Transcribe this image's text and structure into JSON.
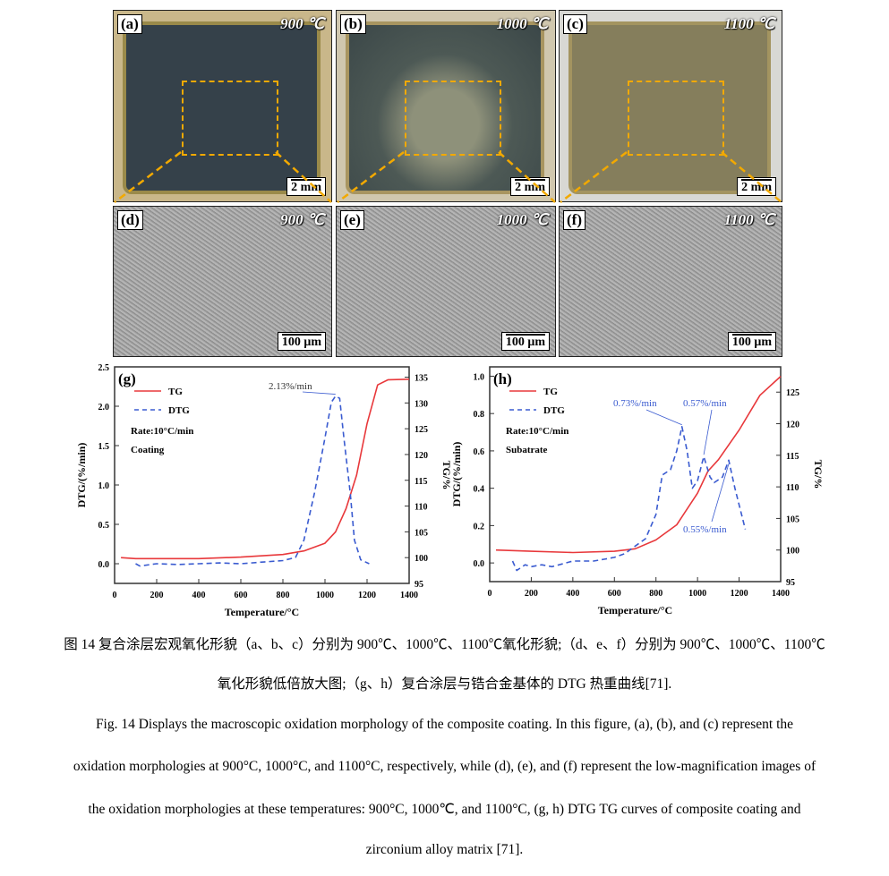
{
  "panels": {
    "macro": [
      {
        "label": "(a)",
        "temp": "900 ℃",
        "scale": "2 mm"
      },
      {
        "label": "(b)",
        "temp": "1000 ℃",
        "scale": "2 mm"
      },
      {
        "label": "(c)",
        "temp": "1100 ℃",
        "scale": "2 mm"
      }
    ],
    "sem": [
      {
        "label": "(d)",
        "temp": "900 ℃",
        "scale": "100 μm"
      },
      {
        "label": "(e)",
        "temp": "1000 ℃",
        "scale": "100 μm"
      },
      {
        "label": "(f)",
        "temp": "1100 ℃",
        "scale": "100 μm"
      }
    ]
  },
  "chart_data": [
    {
      "type": "line",
      "panel": "(g)",
      "xlabel": "Temperature/°C",
      "ylabel": "DTG/(%/min)",
      "y2label": "TG/%",
      "xlim": [
        0,
        1400
      ],
      "xticks": [
        0,
        200,
        400,
        600,
        800,
        1000,
        1200,
        1400
      ],
      "ylim": [
        -0.25,
        2.5
      ],
      "yticks": [
        0.0,
        0.5,
        1.0,
        1.5,
        2.0,
        2.5
      ],
      "y2lim": [
        95,
        137
      ],
      "y2ticks": [
        95,
        100,
        105,
        110,
        115,
        120,
        125,
        130,
        135
      ],
      "legend": [
        "TG",
        "DTG"
      ],
      "notes": [
        "Rate:10°C/min",
        "Coating"
      ],
      "annotations": [
        {
          "text": "2.13%/min",
          "x": 1050,
          "y": 2.13
        }
      ],
      "colors": {
        "TG": "#e8383b",
        "DTG": "#3a5bd0"
      },
      "series": [
        {
          "name": "TG",
          "axis": "right",
          "points": [
            [
              30,
              100
            ],
            [
              100,
              99.8
            ],
            [
              400,
              99.8
            ],
            [
              600,
              100.1
            ],
            [
              800,
              100.6
            ],
            [
              900,
              101.3
            ],
            [
              1000,
              102.8
            ],
            [
              1050,
              105
            ],
            [
              1100,
              109.5
            ],
            [
              1150,
              116
            ],
            [
              1200,
              126
            ],
            [
              1250,
              133.5
            ],
            [
              1300,
              134.5
            ],
            [
              1400,
              134.6
            ]
          ]
        },
        {
          "name": "DTG",
          "axis": "left",
          "points": [
            [
              100,
              0
            ],
            [
              120,
              -0.03
            ],
            [
              200,
              0
            ],
            [
              300,
              -0.01
            ],
            [
              400,
              0
            ],
            [
              500,
              0.01
            ],
            [
              600,
              0
            ],
            [
              700,
              0.02
            ],
            [
              800,
              0.04
            ],
            [
              860,
              0.08
            ],
            [
              900,
              0.3
            ],
            [
              950,
              0.9
            ],
            [
              1000,
              1.6
            ],
            [
              1030,
              2.05
            ],
            [
              1050,
              2.13
            ],
            [
              1070,
              2.1
            ],
            [
              1090,
              1.6
            ],
            [
              1120,
              0.9
            ],
            [
              1140,
              0.3
            ],
            [
              1170,
              0.05
            ],
            [
              1210,
              0.0
            ]
          ]
        }
      ]
    },
    {
      "type": "line",
      "panel": "(h)",
      "xlabel": "Temperature/°C",
      "ylabel": "DTG/(%/min)",
      "y2label": "TG/%",
      "xlim": [
        0,
        1400
      ],
      "xticks": [
        0,
        200,
        400,
        600,
        800,
        1000,
        1200,
        1400
      ],
      "ylim": [
        -0.1,
        1.05
      ],
      "yticks": [
        0.0,
        0.2,
        0.4,
        0.6,
        0.8,
        1.0
      ],
      "y2lim": [
        95,
        129
      ],
      "y2ticks": [
        95,
        100,
        105,
        110,
        115,
        120,
        125
      ],
      "legend": [
        "TG",
        "DTG"
      ],
      "notes": [
        "Rate:10°C/min",
        "Subatrate"
      ],
      "annotations": [
        {
          "text": "0.73%/min",
          "x": 925,
          "y": 0.73
        },
        {
          "text": "0.57%/min",
          "x": 1030,
          "y": 0.57
        },
        {
          "text": "0.55%/min",
          "x": 1150,
          "y": 0.55
        }
      ],
      "colors": {
        "TG": "#e8383b",
        "DTG": "#3a5bd0"
      },
      "series": [
        {
          "name": "TG",
          "axis": "right",
          "points": [
            [
              30,
              100
            ],
            [
              200,
              99.8
            ],
            [
              400,
              99.6
            ],
            [
              600,
              99.8
            ],
            [
              700,
              100.2
            ],
            [
              800,
              101.6
            ],
            [
              900,
              104
            ],
            [
              1000,
              109
            ],
            [
              1050,
              112.5
            ],
            [
              1100,
              114.3
            ],
            [
              1200,
              119
            ],
            [
              1300,
              124.5
            ],
            [
              1400,
              127.5
            ]
          ]
        },
        {
          "name": "DTG",
          "axis": "left",
          "points": [
            [
              110,
              0.01
            ],
            [
              130,
              -0.04
            ],
            [
              170,
              -0.01
            ],
            [
              200,
              -0.02
            ],
            [
              250,
              -0.01
            ],
            [
              300,
              -0.02
            ],
            [
              400,
              0.01
            ],
            [
              500,
              0.01
            ],
            [
              550,
              0.02
            ],
            [
              600,
              0.03
            ],
            [
              650,
              0.05
            ],
            [
              700,
              0.09
            ],
            [
              750,
              0.13
            ],
            [
              800,
              0.26
            ],
            [
              830,
              0.47
            ],
            [
              870,
              0.5
            ],
            [
              900,
              0.6
            ],
            [
              925,
              0.73
            ],
            [
              950,
              0.6
            ],
            [
              975,
              0.4
            ],
            [
              1000,
              0.44
            ],
            [
              1030,
              0.57
            ],
            [
              1060,
              0.46
            ],
            [
              1080,
              0.43
            ],
            [
              1120,
              0.46
            ],
            [
              1150,
              0.55
            ],
            [
              1180,
              0.4
            ],
            [
              1230,
              0.18
            ]
          ]
        }
      ]
    }
  ],
  "caption": {
    "zh_line1": "图 14 复合涂层宏观氧化形貌（a、b、c）分别为 900℃、1000℃、1100℃氧化形貌;（d、e、f）分别为 900℃、1000℃、1100℃",
    "zh_line2": "氧化形貌低倍放大图;（g、h）复合涂层与锆合金基体的 DTG 热重曲线[71].",
    "en_line1": "Fig. 14 Displays the macroscopic oxidation morphology of the composite coating. In this figure, (a), (b), and (c) represent the",
    "en_line2": "oxidation morphologies at 900°C, 1000°C, and 1100°C, respectively, while (d), (e), and (f) represent the low-magnification images of",
    "en_line3": "the oxidation morphologies at these temperatures: 900°C, 1000℃, and 1100°C, (g, h) DTG TG curves of composite coating and",
    "en_line4": "zirconium alloy matrix [71]."
  }
}
